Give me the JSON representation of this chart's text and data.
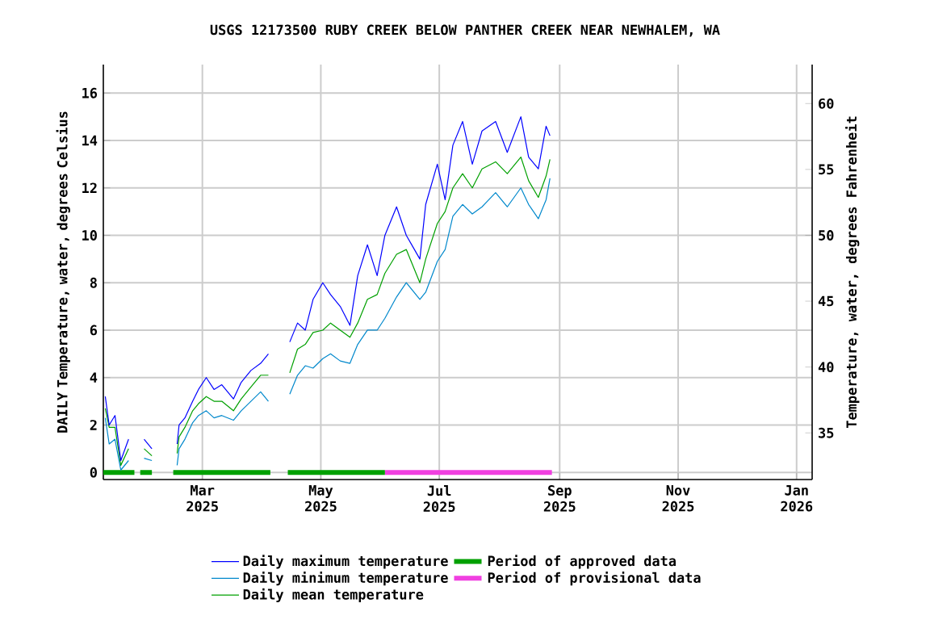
{
  "chart_data": {
    "type": "line",
    "title": "USGS 12173500 RUBY CREEK BELOW PANTHER CREEK NEAR NEWHALEM, WA",
    "ylabel": "DAILY Temperature, water, degrees Celsius",
    "y2label": "Temperature, water, degrees Fahrenheit",
    "xlim": [
      "2025-01-09",
      "2026-01-09"
    ],
    "xticks": [
      {
        "value": "2025-03-01",
        "label": "Mar 2025"
      },
      {
        "value": "2025-05-01",
        "label": "May 2025"
      },
      {
        "value": "2025-07-01",
        "label": "Jul 2025"
      },
      {
        "value": "2025-09-01",
        "label": "Sep 2025"
      },
      {
        "value": "2025-11-01",
        "label": "Nov 2025"
      },
      {
        "value": "2026-01-01",
        "label": "Jan 2026"
      }
    ],
    "ylim": [
      -0.3,
      17.2
    ],
    "yticks": [
      0,
      2,
      4,
      6,
      8,
      10,
      12,
      14,
      16
    ],
    "y2lim": [
      31.46,
      62.96
    ],
    "y2ticks": [
      35,
      40,
      45,
      50,
      55,
      60
    ],
    "grid": true,
    "legend": "bottom",
    "marker": "none",
    "line_style": "solid",
    "x": [
      "2025-01-10",
      "2025-01-12",
      "2025-01-15",
      "2025-01-18",
      "2025-01-22",
      "2025-01-26",
      "2025-01-30",
      "2025-02-03",
      "2025-02-08",
      "2025-02-16",
      "2025-02-17",
      "2025-02-20",
      "2025-02-24",
      "2025-02-27",
      "2025-03-03",
      "2025-03-07",
      "2025-03-11",
      "2025-03-17",
      "2025-03-21",
      "2025-03-26",
      "2025-03-31",
      "2025-04-04",
      "2025-04-10",
      "2025-04-15",
      "2025-04-19",
      "2025-04-23",
      "2025-04-27",
      "2025-05-02",
      "2025-05-06",
      "2025-05-11",
      "2025-05-16",
      "2025-05-20",
      "2025-05-25",
      "2025-05-30",
      "2025-06-03",
      "2025-06-09",
      "2025-06-14",
      "2025-06-21",
      "2025-06-24",
      "2025-06-30",
      "2025-07-04",
      "2025-07-08",
      "2025-07-13",
      "2025-07-18",
      "2025-07-23",
      "2025-07-30",
      "2025-08-05",
      "2025-08-12",
      "2025-08-16",
      "2025-08-21",
      "2025-08-25",
      "2025-08-27"
    ],
    "series": [
      {
        "name": "Daily maximum temperature",
        "color": "#0000ff",
        "values": [
          3.2,
          2.0,
          2.4,
          0.5,
          1.4,
          null,
          1.4,
          1.0,
          null,
          1.2,
          2.0,
          2.3,
          3.0,
          3.5,
          4.0,
          3.5,
          3.7,
          3.1,
          3.8,
          4.3,
          4.6,
          5.0,
          null,
          5.5,
          6.3,
          6.0,
          7.3,
          8.0,
          7.5,
          7.0,
          6.2,
          8.3,
          9.6,
          8.3,
          10.0,
          11.2,
          10.0,
          9.0,
          11.3,
          13.0,
          11.5,
          13.8,
          14.8,
          13.0,
          14.4,
          14.8,
          13.5,
          15.0,
          13.3,
          12.8,
          14.6,
          14.2
        ]
      },
      {
        "name": "Daily minimum temperature",
        "color": "#0088cc",
        "values": [
          2.3,
          1.2,
          1.4,
          0.1,
          0.5,
          null,
          0.6,
          0.5,
          null,
          0.3,
          1.0,
          1.4,
          2.1,
          2.4,
          2.6,
          2.3,
          2.4,
          2.2,
          2.6,
          3.0,
          3.4,
          3.0,
          null,
          3.3,
          4.1,
          4.5,
          4.4,
          4.8,
          5.0,
          4.7,
          4.6,
          5.4,
          6.0,
          6.0,
          6.5,
          7.4,
          8.0,
          7.3,
          7.6,
          8.9,
          9.4,
          10.8,
          11.3,
          10.9,
          11.2,
          11.8,
          11.2,
          12.0,
          11.3,
          10.7,
          11.5,
          12.4
        ]
      },
      {
        "name": "Daily mean temperature",
        "color": "#00a000",
        "values": [
          2.7,
          1.9,
          1.9,
          0.3,
          1.0,
          null,
          1.0,
          0.7,
          null,
          0.8,
          1.5,
          1.9,
          2.6,
          2.9,
          3.2,
          3.0,
          3.0,
          2.6,
          3.1,
          3.6,
          4.1,
          4.1,
          null,
          4.2,
          5.2,
          5.4,
          5.9,
          6.0,
          6.3,
          6.0,
          5.7,
          6.3,
          7.3,
          7.5,
          8.4,
          9.2,
          9.4,
          8.0,
          9.0,
          10.5,
          11.0,
          12.0,
          12.6,
          12.0,
          12.8,
          13.1,
          12.6,
          13.3,
          12.3,
          11.6,
          12.5,
          13.2
        ]
      },
      {
        "name": "Period of approved data",
        "type": "step",
        "color": "#00a000",
        "x": [
          "2025-01-09",
          "2025-01-25",
          "2025-01-26",
          "2025-01-28",
          "2025-02-03",
          "2025-02-04",
          "2025-02-14",
          "2025-04-05",
          "2025-04-06",
          "2025-04-14",
          "2025-06-03"
        ],
        "values": [
          0,
          0,
          null,
          0,
          0,
          null,
          0,
          0,
          null,
          0,
          0
        ]
      },
      {
        "name": "Period of provisional data",
        "type": "step",
        "color": "#f040e0",
        "x": [
          "2025-06-03",
          "2025-08-28"
        ],
        "values": [
          0,
          0
        ]
      }
    ]
  }
}
